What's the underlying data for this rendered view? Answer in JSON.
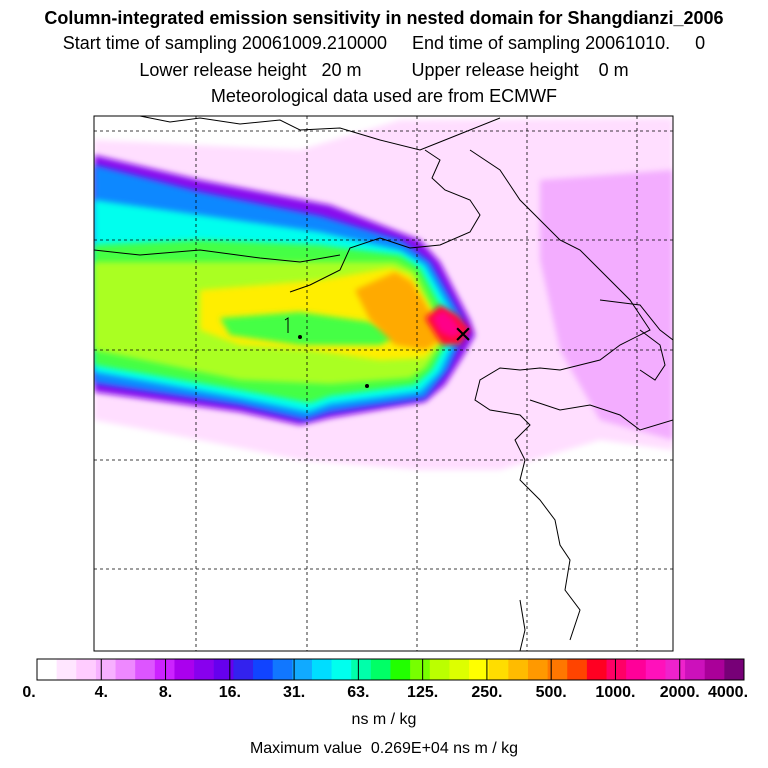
{
  "title": {
    "line1": "Column-integrated emission sensitivity in nested domain for Shangdianzi_2006",
    "line2": "Start time of sampling 20061009.210000     End time of sampling 20061010.     0",
    "line3": "Lower release height   20 m          Upper release height    0 m",
    "line4": "Meteorological data used are from ECMWF"
  },
  "colorbar": {
    "labels": [
      "0.",
      "4.",
      "8.",
      "16.",
      "31.",
      "63.",
      "125.",
      "250.",
      "500.",
      "1000.",
      "2000.",
      "4000."
    ],
    "units": "ns m / kg",
    "max_value_text": "Maximum value  0.269E+04 ns m / kg",
    "colors": [
      "#ffffff",
      "#ffe6ff",
      "#ffccff",
      "#f7b0ff",
      "#ee88ff",
      "#dd55ff",
      "#cc22ff",
      "#aa00ee",
      "#8800ee",
      "#6600ee",
      "#3322ee",
      "#1144ff",
      "#1177ff",
      "#11aaff",
      "#00ddff",
      "#00ffee",
      "#00ffaa",
      "#00ff66",
      "#22ff00",
      "#77ff00",
      "#bbff00",
      "#ddff00",
      "#ffff00",
      "#ffdd00",
      "#ffbb00",
      "#ff9900",
      "#ff7700",
      "#ff4400",
      "#ff0022",
      "#ff0066",
      "#ff0099",
      "#ff11bb",
      "#ee22cc",
      "#cc11bb",
      "#aa0099",
      "#770077"
    ]
  },
  "map": {
    "source_marker": "×",
    "plume_colors": {
      "pink": "#ffd6ff",
      "lilac": "#ee99ff",
      "violet": "#bb33ff",
      "purple": "#8811ee",
      "blue": "#1188ff",
      "cyan": "#00ffee",
      "green": "#44ff44",
      "yellowgreen": "#aaff22",
      "yellow": "#ffee00",
      "orange": "#ffaa00",
      "red": "#ff1133",
      "magenta": "#ff0088"
    }
  }
}
